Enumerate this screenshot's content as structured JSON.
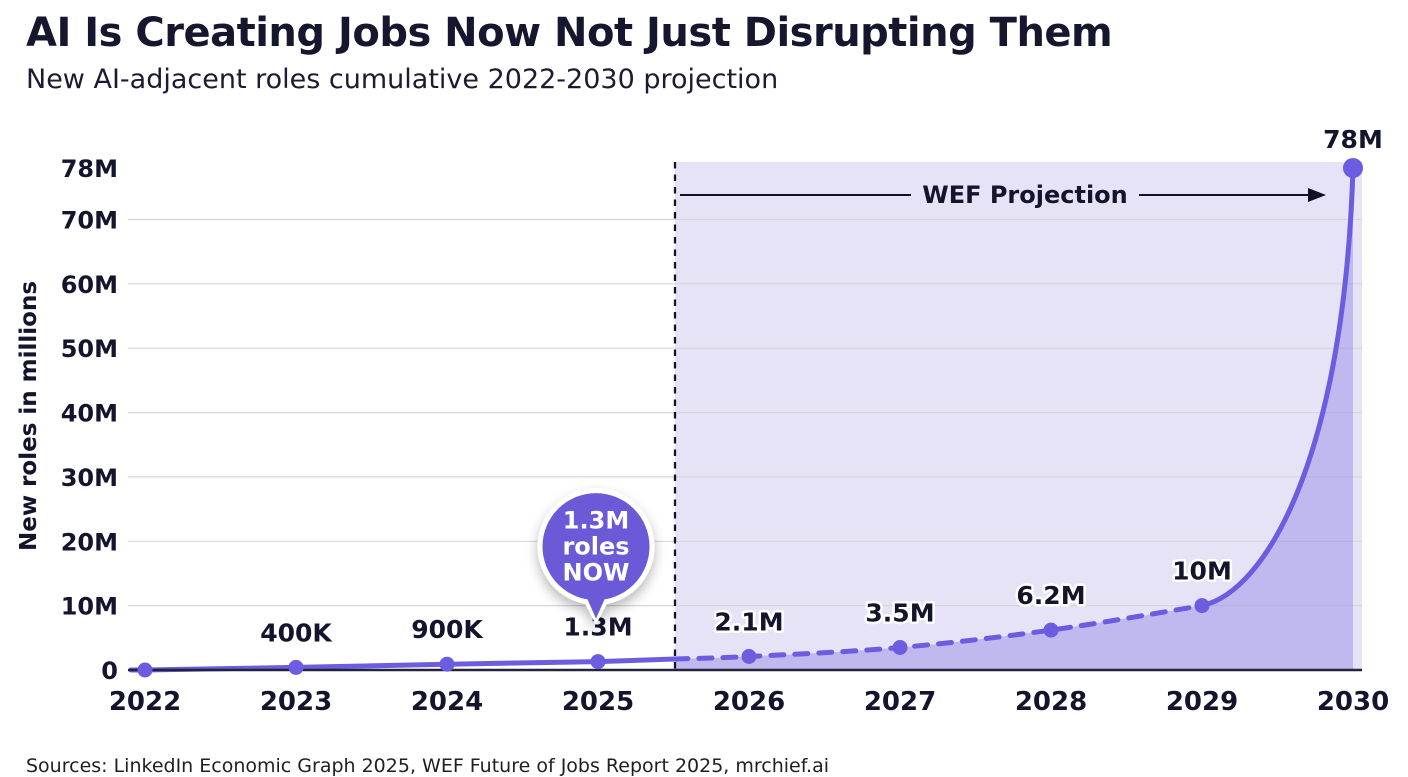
{
  "header": {
    "title": "AI Is Creating Jobs Now Not Just Disrupting Them",
    "subtitle": "New AI-adjacent roles cumulative 2022-2030 projection"
  },
  "footer": {
    "sources": "Sources: LinkedIn Economic Graph 2025, WEF Future of Jobs Report 2025, mrchief.ai"
  },
  "chart_data": {
    "type": "area",
    "title": "New AI-adjacent roles cumulative 2022-2030 projection",
    "xlabel": "",
    "ylabel": "New roles in millions",
    "categories": [
      "2022",
      "2023",
      "2024",
      "2025",
      "2026",
      "2027",
      "2028",
      "2029",
      "2030"
    ],
    "values_millions": [
      0,
      0.4,
      0.9,
      1.3,
      2.1,
      3.5,
      6.2,
      10,
      78
    ],
    "point_labels": [
      "",
      "400K",
      "900K",
      "1.3M",
      "2.1M",
      "3.5M",
      "6.2M",
      "10M",
      "78M"
    ],
    "ylim": [
      0,
      78
    ],
    "y_ticks": [
      {
        "value": 0,
        "label": "0"
      },
      {
        "value": 10,
        "label": "10M"
      },
      {
        "value": 20,
        "label": "20M"
      },
      {
        "value": 30,
        "label": "30M"
      },
      {
        "value": 40,
        "label": "40M"
      },
      {
        "value": 50,
        "label": "50M"
      },
      {
        "value": 60,
        "label": "60M"
      },
      {
        "value": 70,
        "label": "70M"
      },
      {
        "value": 78,
        "label": "78M"
      }
    ],
    "grid": "horizontal",
    "legend": "none",
    "segments": {
      "actual_years": [
        "2022",
        "2025"
      ],
      "projected_years": [
        "2026",
        "2030"
      ],
      "projected_style": "dashed"
    },
    "projection": {
      "divider_after": "2025",
      "zone_label": "WEF Projection"
    },
    "badge": {
      "lines": [
        "1.3M",
        "roles",
        "NOW"
      ],
      "attached_to": "2025"
    },
    "colors": {
      "line": "#6b5ce0",
      "point": "#6b5ce0",
      "area_fill": "rgba(106,90,222,0.30)",
      "projection_zone_bg": "#e6e3f7",
      "badge_fill": "#6a5ad8",
      "badge_text": "#ffffff",
      "divider": "#15152a",
      "grid_line": "#d7d6dd",
      "axis_line": "#23233c",
      "text_ink": "#14142c",
      "annotation_line": "#101020"
    }
  }
}
